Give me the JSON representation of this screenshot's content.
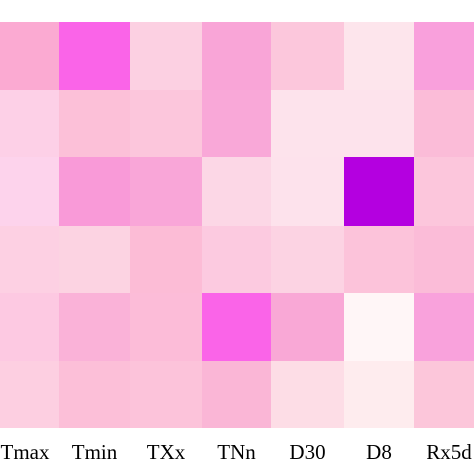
{
  "chart_data": {
    "type": "heatmap",
    "x_tick_labels": [
      "Tmax",
      "Tmin",
      "TXx",
      "TNn",
      "D30",
      "D8",
      "Rx5d"
    ],
    "colorscale": {
      "low": "#ffffff",
      "high": "#b400e0"
    },
    "rows": [
      {
        "cells": [
          {
            "value": 0.3,
            "color": "#fbaad2"
          },
          {
            "value": 0.62,
            "color": "#fa64e8"
          },
          {
            "value": 0.15,
            "color": "#fcd0e2"
          },
          {
            "value": 0.34,
            "color": "#f9a5d7"
          },
          {
            "value": 0.19,
            "color": "#fcc7dc"
          },
          {
            "value": 0.07,
            "color": "#fde5ec"
          },
          {
            "value": 0.34,
            "color": "#f9a0dc"
          }
        ]
      },
      {
        "cells": [
          {
            "value": 0.13,
            "color": "#fdd0e7"
          },
          {
            "value": 0.2,
            "color": "#fcc0d8"
          },
          {
            "value": 0.17,
            "color": "#fcc6dc"
          },
          {
            "value": 0.33,
            "color": "#f9a8d8"
          },
          {
            "value": 0.08,
            "color": "#fde3ec"
          },
          {
            "value": 0.08,
            "color": "#fde3ec"
          },
          {
            "value": 0.22,
            "color": "#fbbcd8"
          }
        ]
      },
      {
        "cells": [
          {
            "value": 0.12,
            "color": "#fdd3ec"
          },
          {
            "value": 0.35,
            "color": "#f99ad8"
          },
          {
            "value": 0.3,
            "color": "#f9a6d8"
          },
          {
            "value": 0.11,
            "color": "#fcd7e6"
          },
          {
            "value": 0.08,
            "color": "#fde2ec"
          },
          {
            "value": 1.0,
            "color": "#b400e0"
          },
          {
            "value": 0.18,
            "color": "#fcc6dc"
          }
        ]
      },
      {
        "cells": [
          {
            "value": 0.14,
            "color": "#fdd0e3"
          },
          {
            "value": 0.12,
            "color": "#fcd3e2"
          },
          {
            "value": 0.2,
            "color": "#fcbcd6"
          },
          {
            "value": 0.15,
            "color": "#fccae0"
          },
          {
            "value": 0.12,
            "color": "#fcd3e3"
          },
          {
            "value": 0.19,
            "color": "#fcc3da"
          },
          {
            "value": 0.22,
            "color": "#fbbcd8"
          }
        ]
      },
      {
        "cells": [
          {
            "value": 0.16,
            "color": "#fdc9e2"
          },
          {
            "value": 0.26,
            "color": "#fab2d8"
          },
          {
            "value": 0.2,
            "color": "#fcbcd8"
          },
          {
            "value": 0.62,
            "color": "#fa64e8"
          },
          {
            "value": 0.3,
            "color": "#f9a8d6"
          },
          {
            "value": 0.02,
            "color": "#fff6f7"
          },
          {
            "value": 0.32,
            "color": "#f9a2dc"
          }
        ]
      },
      {
        "cells": [
          {
            "value": 0.15,
            "color": "#fdcfe1"
          },
          {
            "value": 0.2,
            "color": "#fcbfd8"
          },
          {
            "value": 0.18,
            "color": "#fcc3da"
          },
          {
            "value": 0.22,
            "color": "#fab6d6"
          },
          {
            "value": 0.1,
            "color": "#fddde6"
          },
          {
            "value": 0.04,
            "color": "#feecee"
          },
          {
            "value": 0.18,
            "color": "#fcc6da"
          }
        ]
      }
    ]
  }
}
